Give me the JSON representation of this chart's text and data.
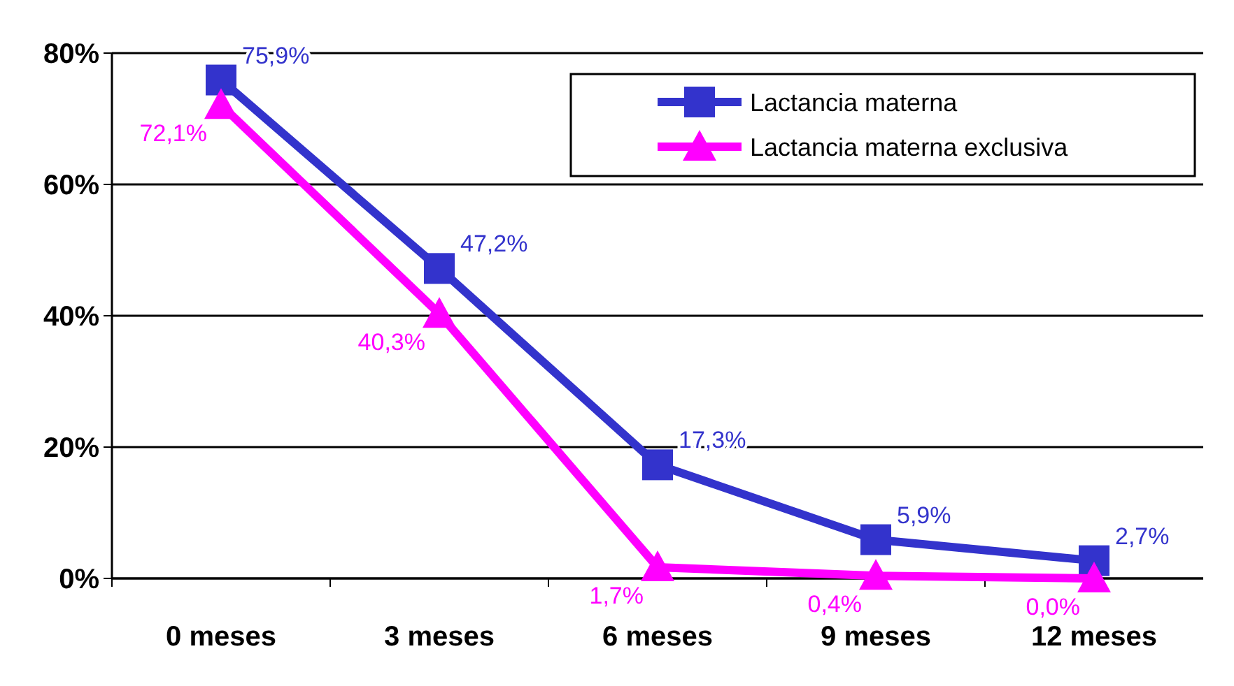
{
  "chart_data": {
    "type": "line",
    "categories": [
      "0 meses",
      "3 meses",
      "6 meses",
      "9 meses",
      "12 meses"
    ],
    "series": [
      {
        "name": "Lactancia materna",
        "color": "#3333cc",
        "marker": "square",
        "values": [
          75.9,
          47.2,
          17.3,
          5.9,
          2.7
        ],
        "value_labels": [
          "75,9%",
          "47,2%",
          "17,3%",
          "5,9%",
          "2,7%"
        ]
      },
      {
        "name": "Lactancia materna exclusiva",
        "color": "#ff00ff",
        "marker": "triangle",
        "values": [
          72.1,
          40.3,
          1.7,
          0.4,
          0.0
        ],
        "value_labels": [
          "72,1%",
          "40,3%",
          "1,7%",
          "0,4%",
          "0,0%"
        ]
      }
    ],
    "ylim": [
      0,
      80
    ],
    "yticks": [
      {
        "value": 0,
        "label": "0%"
      },
      {
        "value": 20,
        "label": "20%"
      },
      {
        "value": 40,
        "label": "40%"
      },
      {
        "value": 60,
        "label": "60%"
      },
      {
        "value": 80,
        "label": "80%"
      }
    ],
    "grid": "y",
    "legend": "top right"
  }
}
